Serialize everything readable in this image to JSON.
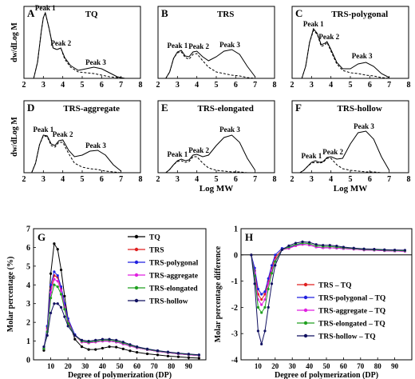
{
  "chart_data": [
    {
      "panel": "A",
      "title": "TQ",
      "type": "line",
      "xlim": [
        2,
        8
      ],
      "xticks": [
        2,
        3,
        4,
        5,
        6,
        7,
        8
      ],
      "ylabel": "dw/dLog M",
      "xlabel": "",
      "peak_labels": [
        {
          "text": "Peak 1",
          "x": 3.1,
          "y": 0.82
        },
        {
          "text": "Peak 2",
          "x": 3.9,
          "y": 0.38
        },
        {
          "text": "Peak 3",
          "x": 5.7,
          "y": 0.14
        }
      ],
      "series": [
        {
          "style": "dashed",
          "x": [
            2.5,
            2.7,
            2.9,
            3.0,
            3.1,
            3.3,
            3.5,
            3.7,
            3.9,
            4.1,
            4.4,
            4.8,
            5.2,
            5.6,
            6.0,
            6.4,
            6.8,
            7.2
          ],
          "y": [
            0,
            0.2,
            0.6,
            0.76,
            0.82,
            0.62,
            0.38,
            0.36,
            0.38,
            0.24,
            0.14,
            0.08,
            0.07,
            0.06,
            0.04,
            0.02,
            0.01,
            0
          ]
        },
        {
          "style": "solid",
          "x": [
            2.5,
            2.7,
            2.9,
            3.0,
            3.1,
            3.3,
            3.5,
            3.7,
            3.9,
            4.1,
            4.4,
            4.8,
            5.2,
            5.6,
            6.0,
            6.4,
            6.8,
            7.2
          ],
          "y": [
            0,
            0.2,
            0.6,
            0.76,
            0.82,
            0.62,
            0.38,
            0.36,
            0.38,
            0.26,
            0.16,
            0.1,
            0.12,
            0.14,
            0.12,
            0.07,
            0.02,
            0
          ]
        }
      ]
    },
    {
      "panel": "B",
      "title": "TRS",
      "type": "line",
      "xlim": [
        2,
        8
      ],
      "xticks": [
        2,
        3,
        4,
        5,
        6,
        7,
        8
      ],
      "ylabel": "",
      "xlabel": "",
      "peak_labels": [
        {
          "text": "Peak 1",
          "x": 3.0,
          "y": 0.35
        },
        {
          "text": "Peak 2",
          "x": 4.1,
          "y": 0.34
        },
        {
          "text": "Peak 3",
          "x": 5.7,
          "y": 0.36
        }
      ],
      "series": [
        {
          "style": "dashed",
          "x": [
            2.4,
            2.6,
            2.8,
            3.0,
            3.2,
            3.4,
            3.6,
            3.8,
            4.0,
            4.3,
            4.6,
            5.0,
            5.4,
            5.8,
            6.2,
            6.6,
            7.0
          ],
          "y": [
            0,
            0.08,
            0.25,
            0.32,
            0.33,
            0.26,
            0.24,
            0.3,
            0.31,
            0.22,
            0.14,
            0.08,
            0.06,
            0.04,
            0.03,
            0.01,
            0
          ]
        },
        {
          "style": "solid",
          "x": [
            2.4,
            2.6,
            2.8,
            3.0,
            3.2,
            3.4,
            3.6,
            3.8,
            4.0,
            4.3,
            4.6,
            5.0,
            5.4,
            5.8,
            6.2,
            6.6,
            7.0
          ],
          "y": [
            0,
            0.08,
            0.25,
            0.33,
            0.35,
            0.28,
            0.27,
            0.33,
            0.34,
            0.27,
            0.22,
            0.27,
            0.34,
            0.36,
            0.3,
            0.15,
            0.02
          ]
        }
      ]
    },
    {
      "panel": "C",
      "title": "TRS-polygonal",
      "type": "line",
      "xlim": [
        2,
        8
      ],
      "xticks": [
        2,
        3,
        4,
        5,
        6,
        7,
        8
      ],
      "ylabel": "",
      "xlabel": "",
      "peak_labels": [
        {
          "text": "Peak 1",
          "x": 3.1,
          "y": 0.62
        },
        {
          "text": "Peak 2",
          "x": 3.9,
          "y": 0.46
        },
        {
          "text": "Peak 3",
          "x": 5.6,
          "y": 0.22
        }
      ],
      "series": [
        {
          "style": "dashed",
          "x": [
            2.5,
            2.7,
            2.9,
            3.1,
            3.3,
            3.5,
            3.7,
            3.8,
            4.0,
            4.3,
            4.6,
            5.0,
            5.4,
            5.8,
            6.2,
            6.6,
            7.0
          ],
          "y": [
            0,
            0.15,
            0.45,
            0.6,
            0.55,
            0.4,
            0.42,
            0.45,
            0.34,
            0.18,
            0.1,
            0.07,
            0.06,
            0.04,
            0.03,
            0.01,
            0
          ]
        },
        {
          "style": "solid",
          "x": [
            2.5,
            2.7,
            2.9,
            3.1,
            3.3,
            3.5,
            3.7,
            3.8,
            4.0,
            4.3,
            4.6,
            5.0,
            5.4,
            5.8,
            6.2,
            6.6,
            7.0
          ],
          "y": [
            0,
            0.15,
            0.45,
            0.62,
            0.56,
            0.42,
            0.44,
            0.46,
            0.36,
            0.2,
            0.12,
            0.12,
            0.18,
            0.2,
            0.15,
            0.06,
            0.01
          ]
        }
      ]
    },
    {
      "panel": "D",
      "title": "TRS-aggregate",
      "type": "line",
      "xlim": [
        2,
        8
      ],
      "xticks": [
        2,
        3,
        4,
        5,
        6,
        7,
        8
      ],
      "ylabel": "dw/dLog M",
      "xlabel": "",
      "peak_labels": [
        {
          "text": "Peak 1",
          "x": 3.0,
          "y": 0.48
        },
        {
          "text": "Peak 2",
          "x": 4.0,
          "y": 0.42
        },
        {
          "text": "Peak 3",
          "x": 5.7,
          "y": 0.28
        }
      ],
      "series": [
        {
          "style": "dashed",
          "x": [
            2.4,
            2.6,
            2.8,
            3.0,
            3.2,
            3.4,
            3.6,
            3.8,
            4.0,
            4.3,
            4.6,
            5.0,
            5.4,
            5.8,
            6.2,
            6.6,
            7.0
          ],
          "y": [
            0,
            0.12,
            0.35,
            0.46,
            0.45,
            0.34,
            0.32,
            0.38,
            0.38,
            0.24,
            0.12,
            0.07,
            0.05,
            0.04,
            0.02,
            0.01,
            0
          ]
        },
        {
          "style": "solid",
          "x": [
            2.4,
            2.6,
            2.8,
            3.0,
            3.2,
            3.4,
            3.6,
            3.8,
            4.0,
            4.3,
            4.6,
            5.0,
            5.4,
            5.8,
            6.2,
            6.6,
            7.0
          ],
          "y": [
            0,
            0.12,
            0.35,
            0.47,
            0.46,
            0.36,
            0.34,
            0.4,
            0.41,
            0.28,
            0.2,
            0.22,
            0.27,
            0.28,
            0.22,
            0.1,
            0.02
          ]
        }
      ]
    },
    {
      "panel": "E",
      "title": "TRS-elongated",
      "type": "line",
      "xlim": [
        2,
        8
      ],
      "xticks": [
        2,
        3,
        4,
        5,
        6,
        7,
        8
      ],
      "ylabel": "",
      "xlabel": "Log MW",
      "peak_labels": [
        {
          "text": "Peak 1",
          "x": 3.0,
          "y": 0.17
        },
        {
          "text": "Peak 2",
          "x": 4.1,
          "y": 0.22
        },
        {
          "text": "Peak 3",
          "x": 5.7,
          "y": 0.48
        }
      ],
      "series": [
        {
          "style": "dashed",
          "x": [
            2.4,
            2.6,
            2.8,
            3.0,
            3.2,
            3.4,
            3.6,
            3.8,
            4.0,
            4.3,
            4.6,
            5.0,
            5.4,
            5.8,
            6.2,
            6.6,
            7.0
          ],
          "y": [
            0,
            0.04,
            0.1,
            0.14,
            0.15,
            0.13,
            0.14,
            0.2,
            0.2,
            0.12,
            0.06,
            0.03,
            0.02,
            0.01,
            0.01,
            0,
            0
          ]
        },
        {
          "style": "solid",
          "x": [
            2.4,
            2.6,
            2.8,
            3.0,
            3.2,
            3.4,
            3.6,
            3.8,
            4.0,
            4.3,
            4.6,
            5.0,
            5.4,
            5.8,
            6.2,
            6.6,
            7.0
          ],
          "y": [
            0,
            0.04,
            0.1,
            0.15,
            0.17,
            0.15,
            0.16,
            0.22,
            0.23,
            0.2,
            0.22,
            0.34,
            0.44,
            0.47,
            0.38,
            0.18,
            0.03
          ]
        }
      ]
    },
    {
      "panel": "F",
      "title": "TRS-hollow",
      "type": "line",
      "xlim": [
        2,
        8
      ],
      "xticks": [
        2,
        3,
        4,
        5,
        6,
        7,
        8
      ],
      "ylabel": "",
      "xlabel": "Log MW",
      "peak_labels": [
        {
          "text": "Peak 1",
          "x": 3.0,
          "y": 0.15
        },
        {
          "text": "Peak 2",
          "x": 4.1,
          "y": 0.2
        },
        {
          "text": "Peak 3",
          "x": 5.7,
          "y": 0.52
        }
      ],
      "series": [
        {
          "style": "dashed",
          "x": [
            2.4,
            2.6,
            2.8,
            3.0,
            3.2,
            3.4,
            3.6,
            3.8,
            4.0,
            4.3,
            4.6,
            5.0,
            5.4,
            5.8,
            6.2,
            6.6,
            7.0
          ],
          "y": [
            0,
            0.03,
            0.08,
            0.12,
            0.13,
            0.12,
            0.13,
            0.18,
            0.18,
            0.1,
            0.05,
            0.03,
            0.02,
            0.01,
            0.01,
            0,
            0
          ]
        },
        {
          "style": "solid",
          "x": [
            2.4,
            2.6,
            2.8,
            3.0,
            3.2,
            3.4,
            3.6,
            3.8,
            4.0,
            4.3,
            4.6,
            5.0,
            5.4,
            5.8,
            6.2,
            6.6,
            7.0
          ],
          "y": [
            0,
            0.03,
            0.08,
            0.13,
            0.15,
            0.13,
            0.14,
            0.19,
            0.2,
            0.17,
            0.18,
            0.36,
            0.5,
            0.52,
            0.42,
            0.2,
            0.03
          ]
        }
      ]
    },
    {
      "panel": "G",
      "type": "line",
      "xlabel": "Degree of polymerization (DP)",
      "ylabel": "Molar percentage (%)",
      "xlim": [
        0,
        100
      ],
      "ylim": [
        0,
        7
      ],
      "xticks": [
        10,
        20,
        30,
        40,
        50,
        60,
        70,
        80,
        90
      ],
      "yticks": [
        0,
        1,
        2,
        3,
        4,
        5,
        6,
        7
      ],
      "legend": "top-right",
      "x": [
        6,
        8,
        10,
        12,
        14,
        16,
        18,
        20,
        24,
        28,
        32,
        36,
        40,
        44,
        48,
        52,
        56,
        60,
        66,
        72,
        78,
        84,
        90,
        96
      ],
      "series": [
        {
          "name": "TQ",
          "color": "#000000",
          "y": [
            0.5,
            1.8,
            4.6,
            6.2,
            5.9,
            4.8,
            3.4,
            2.2,
            1.1,
            0.7,
            0.55,
            0.55,
            0.62,
            0.7,
            0.68,
            0.58,
            0.48,
            0.4,
            0.32,
            0.26,
            0.2,
            0.16,
            0.12,
            0.09
          ]
        },
        {
          "name": "TRS",
          "color": "#e02020",
          "y": [
            0.6,
            1.7,
            3.8,
            4.5,
            4.4,
            3.8,
            2.9,
            2.1,
            1.3,
            0.95,
            0.9,
            0.95,
            1.0,
            1.0,
            0.95,
            0.85,
            0.74,
            0.64,
            0.54,
            0.45,
            0.38,
            0.32,
            0.27,
            0.23
          ]
        },
        {
          "name": "TRS-polygonal",
          "color": "#2020e0",
          "y": [
            0.6,
            1.8,
            4.0,
            4.7,
            4.5,
            3.9,
            3.0,
            2.2,
            1.35,
            0.98,
            0.92,
            0.96,
            1.0,
            1.0,
            0.95,
            0.85,
            0.74,
            0.64,
            0.54,
            0.45,
            0.38,
            0.32,
            0.27,
            0.23
          ]
        },
        {
          "name": "TRS-aggregate",
          "color": "#e020e0",
          "y": [
            0.6,
            1.6,
            3.6,
            4.3,
            4.2,
            3.7,
            2.8,
            2.0,
            1.3,
            0.95,
            0.9,
            0.95,
            1.0,
            1.0,
            0.95,
            0.85,
            0.74,
            0.64,
            0.54,
            0.45,
            0.38,
            0.32,
            0.27,
            0.23
          ]
        },
        {
          "name": "TRS-elongated",
          "color": "#20a020",
          "y": [
            0.6,
            1.5,
            3.3,
            4.0,
            3.9,
            3.5,
            2.7,
            1.95,
            1.3,
            1.0,
            0.95,
            1.0,
            1.05,
            1.05,
            1.0,
            0.9,
            0.78,
            0.67,
            0.56,
            0.47,
            0.4,
            0.34,
            0.29,
            0.25
          ]
        },
        {
          "name": "TRS-hollow",
          "color": "#101060",
          "y": [
            0.7,
            1.3,
            2.5,
            3.0,
            3.0,
            2.8,
            2.3,
            1.8,
            1.3,
            1.05,
            1.0,
            1.05,
            1.1,
            1.1,
            1.05,
            0.95,
            0.82,
            0.7,
            0.58,
            0.49,
            0.42,
            0.36,
            0.31,
            0.27
          ]
        }
      ]
    },
    {
      "panel": "H",
      "type": "line",
      "xlabel": "Degree of polymerization (DP)",
      "ylabel": "Molar percentage difference",
      "xlim": [
        0,
        100
      ],
      "ylim": [
        -4,
        1
      ],
      "xticks": [
        10,
        20,
        30,
        40,
        50,
        60,
        70,
        80,
        90
      ],
      "yticks": [
        -4,
        -3,
        -2,
        -1,
        0,
        1
      ],
      "legend": "center-right",
      "x": [
        6,
        8,
        10,
        12,
        14,
        16,
        18,
        20,
        24,
        28,
        32,
        36,
        40,
        44,
        48,
        52,
        56,
        60,
        66,
        72,
        78,
        84,
        90,
        96
      ],
      "series": [
        {
          "name": "TRS – TQ",
          "color": "#e02020",
          "y": [
            0.0,
            -0.6,
            -1.5,
            -1.7,
            -1.5,
            -1.0,
            -0.5,
            -0.1,
            0.2,
            0.25,
            0.35,
            0.4,
            0.38,
            0.3,
            0.27,
            0.27,
            0.26,
            0.24,
            0.22,
            0.19,
            0.18,
            0.16,
            0.15,
            0.14
          ]
        },
        {
          "name": "TRS-polygonal – TQ",
          "color": "#2020e0",
          "y": [
            0.0,
            -0.5,
            -1.3,
            -1.5,
            -1.4,
            -0.9,
            -0.4,
            0.0,
            0.25,
            0.28,
            0.37,
            0.41,
            0.38,
            0.3,
            0.27,
            0.27,
            0.26,
            0.24,
            0.22,
            0.19,
            0.18,
            0.16,
            0.15,
            0.14
          ]
        },
        {
          "name": "TRS-aggregate – TQ",
          "color": "#e020e0",
          "y": [
            0.0,
            -0.7,
            -1.7,
            -1.9,
            -1.7,
            -1.1,
            -0.6,
            -0.2,
            0.2,
            0.25,
            0.35,
            0.4,
            0.38,
            0.3,
            0.27,
            0.27,
            0.26,
            0.24,
            0.22,
            0.19,
            0.18,
            0.16,
            0.15,
            0.14
          ]
        },
        {
          "name": "TRS-elongated – TQ",
          "color": "#20a020",
          "y": [
            0.0,
            -0.8,
            -2.0,
            -2.2,
            -2.0,
            -1.3,
            -0.7,
            -0.25,
            0.2,
            0.3,
            0.4,
            0.45,
            0.43,
            0.35,
            0.32,
            0.32,
            0.3,
            0.27,
            0.24,
            0.21,
            0.2,
            0.18,
            0.17,
            0.16
          ]
        },
        {
          "name": "TRS-hollow – TQ",
          "color": "#101060",
          "y": [
            0.0,
            -1.1,
            -2.9,
            -3.4,
            -2.9,
            -2.0,
            -1.1,
            -0.4,
            0.2,
            0.35,
            0.45,
            0.5,
            0.48,
            0.4,
            0.37,
            0.37,
            0.34,
            0.3,
            0.26,
            0.23,
            0.22,
            0.2,
            0.19,
            0.18
          ]
        }
      ]
    }
  ]
}
